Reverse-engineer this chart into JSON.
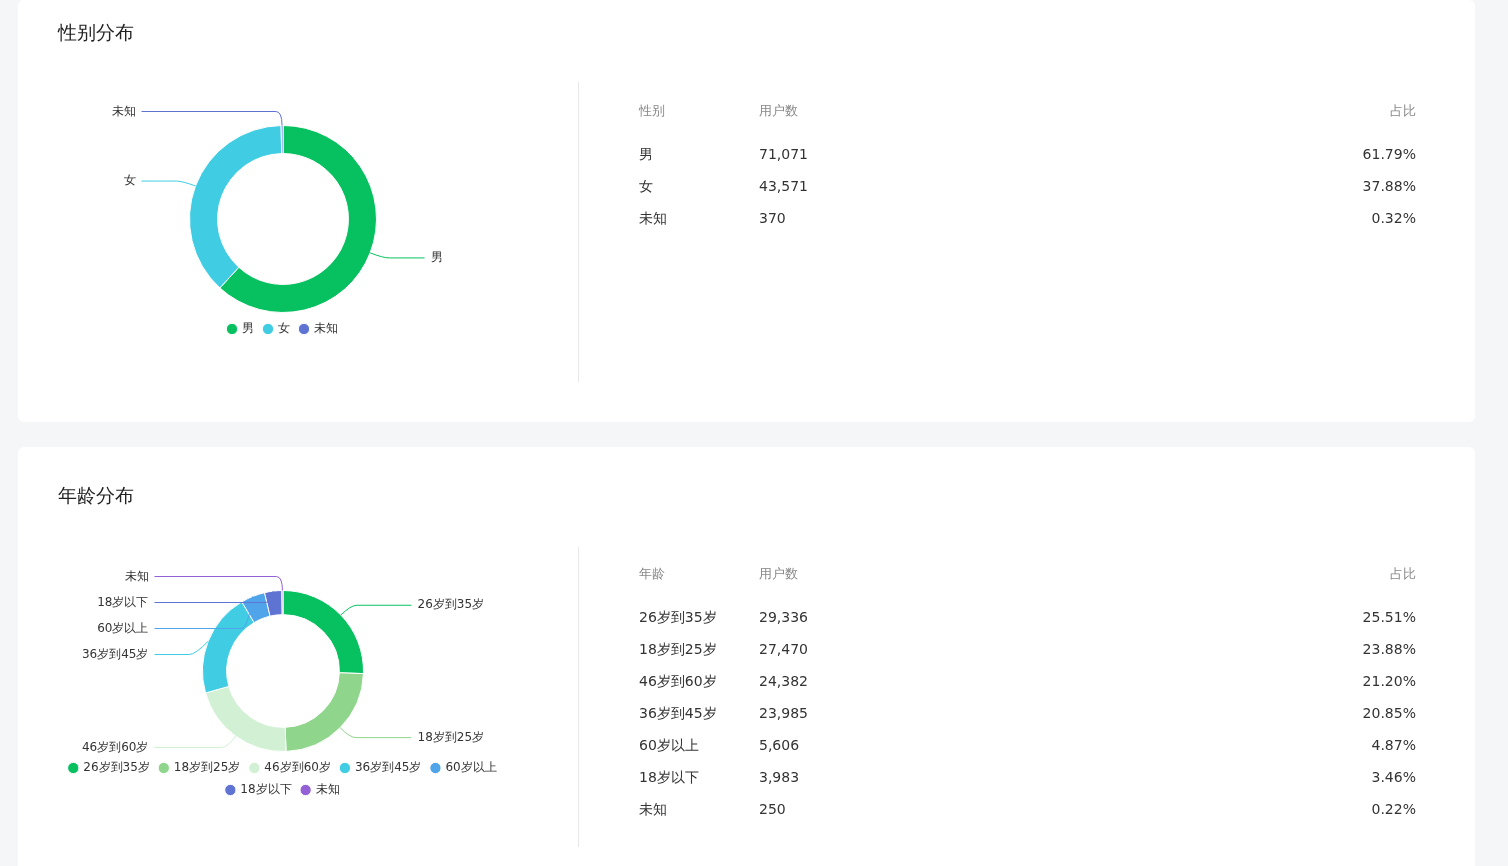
{
  "chart_data": [
    {
      "type": "donut",
      "title": "性别分布",
      "categories": [
        "男",
        "女",
        "未知"
      ],
      "values": [
        61.79,
        37.88,
        0.32
      ],
      "colors": [
        "#07c160",
        "#40cde3",
        "#5f73d3"
      ],
      "legend": "bottom",
      "annotations": [
        "性别",
        "用户数",
        "占比",
        "71,071",
        "61.79%",
        "43,571",
        "37.88%",
        "370",
        "0.32%"
      ]
    },
    {
      "type": "donut",
      "title": "年龄分布",
      "categories": [
        "26岁到35岁",
        "18岁到25岁",
        "46岁到60岁",
        "36岁到45岁",
        "60岁以上",
        "18岁以下",
        "未知"
      ],
      "values": [
        25.51,
        23.88,
        21.2,
        20.85,
        4.87,
        3.46,
        0.22
      ],
      "colors": [
        "#07c160",
        "#8fd68c",
        "#d1f0d4",
        "#40cde3",
        "#4fa4ea",
        "#5f73d3",
        "#9460d6"
      ],
      "legend": "bottom",
      "annotations": [
        "年龄",
        "用户数",
        "占比",
        "29,336",
        "25.51%",
        "27,470",
        "23.88%",
        "24,382",
        "21.20%",
        "23,985",
        "20.85%",
        "5,606",
        "4.87%",
        "3,983",
        "3.46%",
        "250",
        "0.22%"
      ]
    }
  ]
}
